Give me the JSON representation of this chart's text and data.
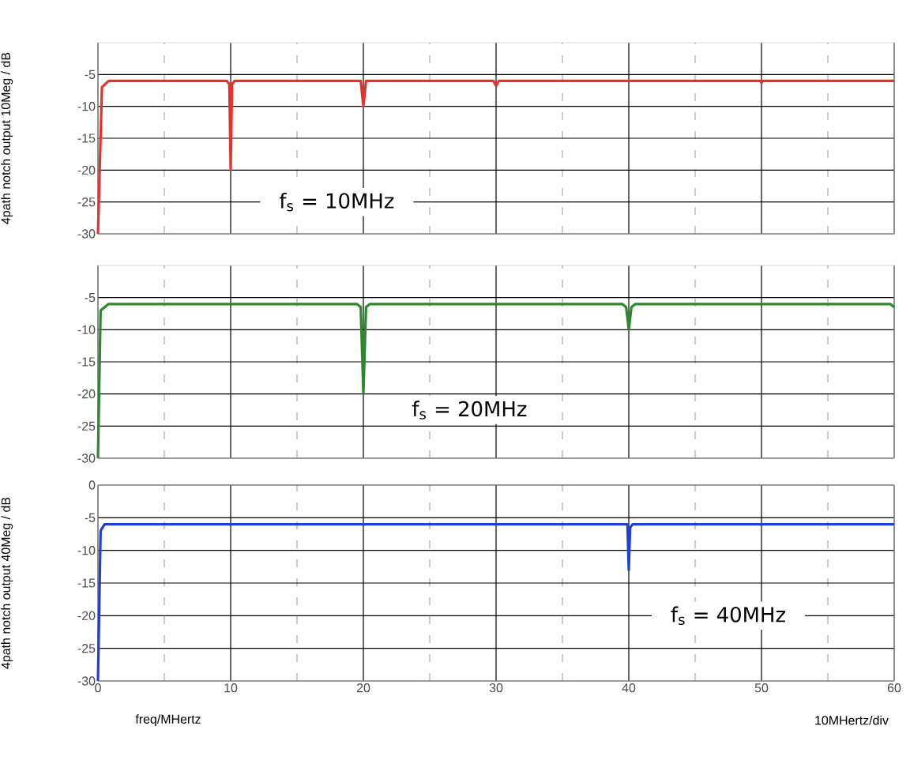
{
  "chart_data": [
    {
      "type": "line",
      "ylabel": "4path notch output 10Meg / dB",
      "annotations": [
        "f$_{s}$ = 10MHz"
      ],
      "xlim": [
        0,
        60
      ],
      "xticks": [
        0,
        10,
        20,
        30,
        40,
        50,
        60
      ],
      "ylim": [
        -30,
        0
      ],
      "yticks": [
        -30,
        -25,
        -20,
        -15,
        -10,
        -5
      ],
      "grid": true,
      "tick_labels": "y",
      "series": [
        {
          "color": "#e8312b",
          "x": [
            0,
            0.3,
            0.8,
            9.7,
            9.9,
            10,
            10.1,
            10.3,
            19.8,
            20,
            20.2,
            29.8,
            30,
            30.2,
            49.9,
            50,
            50.1,
            60
          ],
          "values": [
            -30,
            -7,
            -6,
            -6,
            -6.5,
            -20,
            -6.5,
            -6,
            -6,
            -10,
            -6,
            -6,
            -6.8,
            -6,
            -6,
            -6.3,
            -6,
            -6
          ]
        }
      ]
    },
    {
      "type": "line",
      "annotations": [
        "f$_{s}$ = 20MHz"
      ],
      "xlim": [
        0,
        60
      ],
      "xticks": [
        0,
        10,
        20,
        30,
        40,
        50,
        60
      ],
      "ylim": [
        -30,
        0
      ],
      "yticks": [
        -30,
        -25,
        -20,
        -15,
        -10,
        -5
      ],
      "grid": true,
      "tick_labels": "y",
      "series": [
        {
          "color": "#2a8a2a",
          "x": [
            0,
            0.2,
            0.8,
            19.5,
            19.8,
            20,
            20.2,
            20.5,
            39.5,
            39.8,
            40,
            40.2,
            40.5,
            59.7,
            60
          ],
          "values": [
            -30,
            -7,
            -6,
            -6,
            -6.5,
            -20,
            -6.5,
            -6,
            -6,
            -6.5,
            -10,
            -6.5,
            -6,
            -6,
            -6.5
          ]
        }
      ]
    },
    {
      "type": "line",
      "xlabel": "freq/MHertz",
      "ylabel": "4path notch output 40Meg / dB",
      "annotations": [
        "f$_{s}$ = 40MHz",
        "10MHertz/div"
      ],
      "xlim": [
        0,
        60
      ],
      "xticks": [
        0,
        10,
        20,
        30,
        40,
        50,
        60
      ],
      "ylim": [
        -30,
        0
      ],
      "yticks": [
        -30,
        -25,
        -20,
        -15,
        -10,
        -5,
        0
      ],
      "grid": true,
      "series": [
        {
          "color": "#1f3fd8",
          "x": [
            0,
            0.2,
            0.5,
            39.9,
            40,
            40.1,
            40.3,
            60
          ],
          "values": [
            -30,
            -7,
            -6,
            -6,
            -13,
            -6.5,
            -6,
            -6
          ]
        }
      ]
    }
  ]
}
